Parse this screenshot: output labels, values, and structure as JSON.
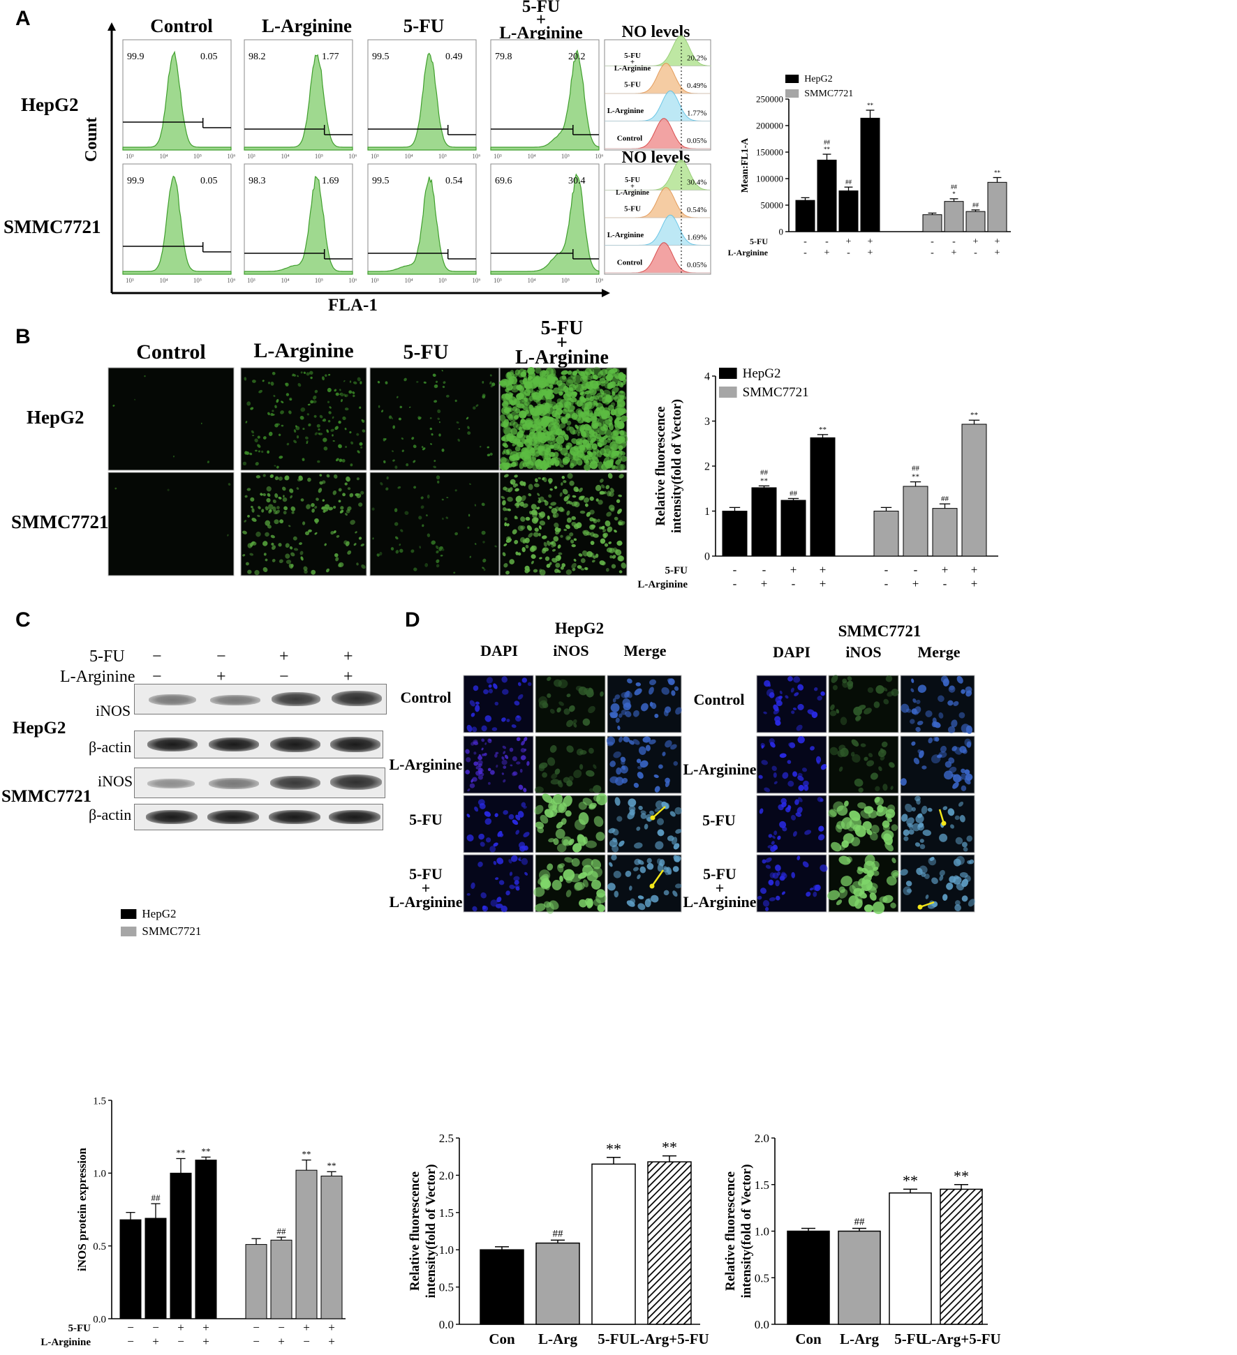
{
  "panel_letters": {
    "a": "A",
    "b": "B",
    "c": "C",
    "d": "D"
  },
  "panelA": {
    "col_titles": [
      "Control",
      "L-Arginine",
      "5-FU",
      "5-FU\n+\nL-Arginine",
      "NO levels"
    ],
    "row_titles": [
      "HepG2",
      "SMMC7721"
    ],
    "y_label": "Count",
    "x_label": "FLA-1",
    "hist_left_pct": [
      [
        "99.9",
        "98.2",
        "99.5",
        "79.8"
      ],
      [
        "99.9",
        "98.3",
        "99.5",
        "69.6"
      ]
    ],
    "hist_right_pct": [
      [
        "0.05",
        "1.77",
        "0.49",
        "20.2"
      ],
      [
        "0.05",
        "1.69",
        "0.54",
        "30.4"
      ]
    ],
    "overlay_title": "NO levels",
    "overlay_labels": [
      "5-FU\n+\nL-Arginine",
      "5-FU",
      "L-Arginine",
      "Control"
    ],
    "overlay_pct": [
      [
        "20.2%",
        "0.49%",
        "1.77%",
        "0.05%"
      ],
      [
        "30.4%",
        "0.54%",
        "1.69%",
        "0.05%"
      ]
    ]
  },
  "panelB": {
    "col_titles": [
      "Control",
      "L-Arginine",
      "5-FU",
      "5-FU\n+\nL-Arginine"
    ],
    "row_titles": [
      "HepG2",
      "SMMC7721"
    ]
  },
  "panelC": {
    "treat_labels": [
      "5-FU",
      "L-Arginine"
    ],
    "treat_signs": [
      [
        "−",
        "−",
        "+",
        "+"
      ],
      [
        "−",
        "+",
        "−",
        "+"
      ]
    ],
    "row_titles": [
      "HepG2",
      "SMMC7721"
    ],
    "band_labels": [
      "iNOS",
      "β-actin",
      "iNOS",
      "β-actin"
    ]
  },
  "panelD": {
    "cell_titles": [
      "HepG2",
      "SMMC7721"
    ],
    "col_titles": [
      "DAPI",
      "iNOS",
      "Merge"
    ],
    "row_titles": [
      "Control",
      "L-Arginine",
      "5-FU",
      "5-FU\n+\nL-Arginine"
    ]
  },
  "chart_data": [
    {
      "type": "bar",
      "panel": "A",
      "ylabel": "Mean:FL1-A",
      "ylim": [
        0,
        250000
      ],
      "yticks": [
        "0",
        "50000",
        "100000",
        "150000",
        "200000",
        "250000"
      ],
      "treatment_rows": [
        "5-FU",
        "L-Arginine"
      ],
      "signs": [
        [
          "-",
          "-",
          "+",
          "+",
          "-",
          "-",
          "+",
          "+"
        ],
        [
          "-",
          "+",
          "-",
          "+",
          "-",
          "+",
          "-",
          "+"
        ]
      ],
      "series": [
        {
          "name": "HepG2",
          "color": "#000000",
          "values": [
            59000,
            135000,
            77000,
            214000
          ],
          "errors": [
            5000,
            11000,
            7000,
            15000
          ],
          "annotations": [
            "",
            "##\n**",
            "##",
            "**"
          ]
        },
        {
          "name": "SMMC7721",
          "color": "#a6a6a6",
          "values": [
            32000,
            57000,
            38000,
            93000
          ],
          "errors": [
            3000,
            5000,
            3000,
            9000
          ],
          "annotations": [
            "",
            "##\n*",
            "##",
            "**"
          ]
        }
      ]
    },
    {
      "type": "bar",
      "panel": "B",
      "ylabel": "Relative fluorescence\nintensity(fold of Vector)",
      "ylim": [
        0,
        4
      ],
      "yticks": [
        "0",
        "1",
        "2",
        "3",
        "4"
      ],
      "treatment_rows": [
        "5-FU",
        "L-Arginine"
      ],
      "signs": [
        [
          "-",
          "-",
          "+",
          "+",
          "-",
          "-",
          "+",
          "+"
        ],
        [
          "-",
          "+",
          "-",
          "+",
          "-",
          "+",
          "-",
          "+"
        ]
      ],
      "series": [
        {
          "name": "HepG2",
          "color": "#000000",
          "values": [
            1.0,
            1.52,
            1.24,
            2.63
          ],
          "errors": [
            0.08,
            0.04,
            0.04,
            0.07
          ],
          "annotations": [
            "",
            "##\n**",
            "##",
            "**"
          ]
        },
        {
          "name": "SMMC7721",
          "color": "#a6a6a6",
          "values": [
            1.0,
            1.55,
            1.06,
            2.93
          ],
          "errors": [
            0.08,
            0.1,
            0.1,
            0.09
          ],
          "annotations": [
            "",
            "##\n**",
            "##",
            "**"
          ]
        }
      ]
    },
    {
      "type": "bar",
      "panel": "C",
      "ylabel": "iNOS protein expression",
      "ylim": [
        0,
        1.5
      ],
      "yticks": [
        "0.0",
        "0.5",
        "1.0",
        "1.5"
      ],
      "treatment_rows": [
        "5-FU",
        "L-Arginine"
      ],
      "signs": [
        [
          "−",
          "−",
          "+",
          "+",
          "−",
          "−",
          "+",
          "+"
        ],
        [
          "−",
          "+",
          "−",
          "+",
          "−",
          "+",
          "−",
          "+"
        ]
      ],
      "series": [
        {
          "name": "HepG2",
          "color": "#000000",
          "values": [
            0.68,
            0.69,
            1.0,
            1.09
          ],
          "errors": [
            0.05,
            0.1,
            0.1,
            0.02
          ],
          "annotations": [
            "",
            "##",
            "**",
            "**"
          ]
        },
        {
          "name": "SMMC7721",
          "color": "#a6a6a6",
          "values": [
            0.51,
            0.54,
            1.02,
            0.98
          ],
          "errors": [
            0.04,
            0.02,
            0.07,
            0.03
          ],
          "annotations": [
            "",
            "##",
            "**",
            "**"
          ]
        }
      ]
    },
    {
      "type": "bar",
      "panel": "D-HepG2",
      "ylabel": "Relative fluorescence\nintensity(fold of Vector)",
      "ylim": [
        0,
        2.5
      ],
      "yticks": [
        "0.0",
        "0.5",
        "1.0",
        "1.5",
        "2.0",
        "2.5"
      ],
      "categories": [
        "Con",
        "L-Arg",
        "5-FU",
        "L-Arg+5-FU"
      ],
      "values": [
        1.0,
        1.09,
        2.15,
        2.18
      ],
      "errors": [
        0.04,
        0.04,
        0.09,
        0.08
      ],
      "annotations": [
        "",
        "##",
        "**",
        "**"
      ],
      "fills": [
        "black",
        "gray",
        "white",
        "hatch"
      ]
    },
    {
      "type": "bar",
      "panel": "D-SMMC7721",
      "ylabel": "Relative fluorescence\nintensity(fold of Vector)",
      "ylim": [
        0,
        2.0
      ],
      "yticks": [
        "0.0",
        "0.5",
        "1.0",
        "1.5",
        "2.0"
      ],
      "categories": [
        "Con",
        "L-Arg",
        "5-FU",
        "L-Arg+5-FU"
      ],
      "values": [
        1.0,
        1.0,
        1.41,
        1.45
      ],
      "errors": [
        0.03,
        0.03,
        0.04,
        0.05
      ],
      "annotations": [
        "",
        "##",
        "**",
        "**"
      ],
      "fills": [
        "black",
        "gray",
        "white",
        "hatch"
      ]
    }
  ]
}
